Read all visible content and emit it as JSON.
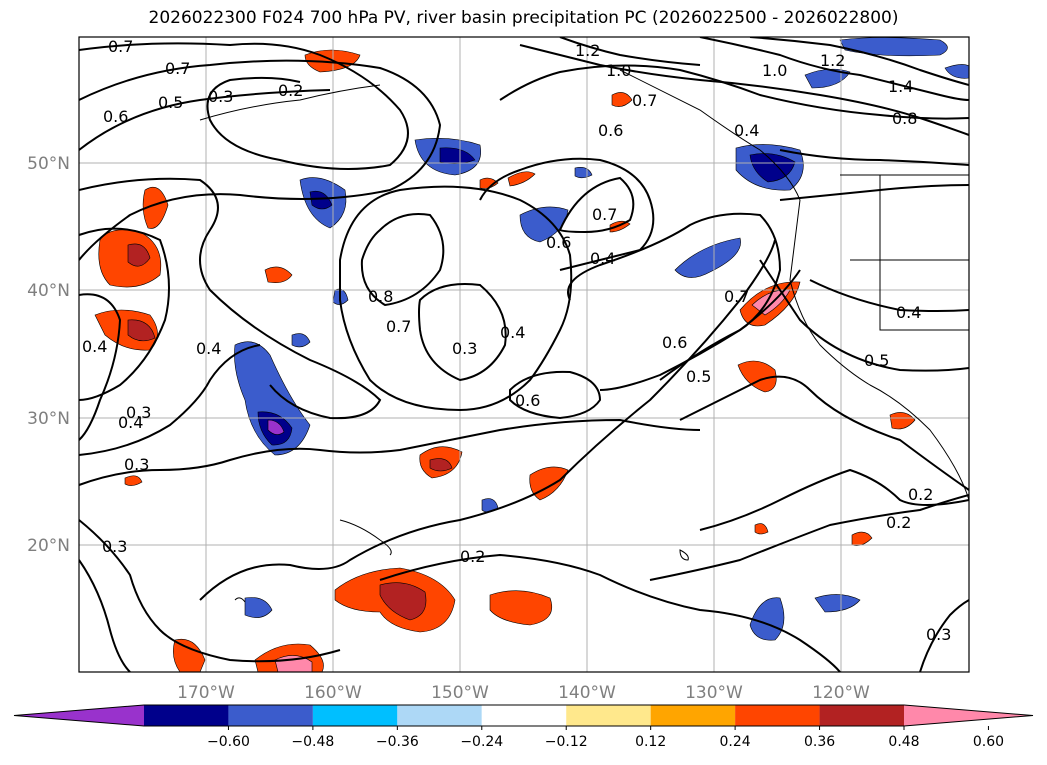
{
  "title": "2026022300 F024 700 hPa PV, river basin precipitation PC (2026022500 - 2026022800)",
  "map": {
    "lon_labels": [
      "170°W",
      "160°W",
      "150°W",
      "140°W",
      "130°W",
      "120°W"
    ],
    "lat_labels": [
      "50°N",
      "40°N",
      "30°N",
      "20°N"
    ]
  },
  "contour_labels": [
    "0.7",
    "0.7",
    "0.6",
    "0.5",
    "0.3",
    "0.2",
    "1.2",
    "1.0",
    "1.0",
    "1.2",
    "1.4",
    "0.8",
    "0.7",
    "0.6",
    "0.4",
    "0.7",
    "0.6",
    "0.4",
    "0.8",
    "0.7",
    "0.3",
    "0.4",
    "0.4",
    "0.4",
    "0.3",
    "0.6",
    "0.6",
    "0.5",
    "0.7",
    "0.5",
    "0.4",
    "0.2",
    "0.2",
    "0.2",
    "0.3",
    "0.3",
    "0.4",
    "0.3"
  ],
  "colorbar": {
    "ticks": [
      "−0.60",
      "−0.48",
      "−0.36",
      "−0.24",
      "−0.12",
      "0.12",
      "0.24",
      "0.36",
      "0.48",
      "0.60"
    ],
    "colors": [
      "#9932cc",
      "#00008b",
      "#3b5ccc",
      "#00bfff",
      "#add8f6",
      "#ffffff",
      "#ffe88c",
      "#ffa500",
      "#ff4500",
      "#b22222",
      "#ff88aa"
    ]
  }
}
